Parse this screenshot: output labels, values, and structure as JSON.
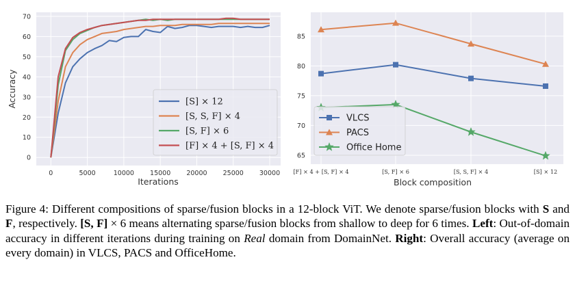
{
  "chart_data": [
    {
      "type": "line",
      "position": "left",
      "xlabel": "Iterations",
      "ylabel": "Accuracy",
      "xlim": [
        -2000,
        31500
      ],
      "ylim": [
        -4,
        72
      ],
      "xticks": [
        0,
        5000,
        10000,
        15000,
        20000,
        25000,
        30000
      ],
      "yticks": [
        0,
        10,
        20,
        30,
        40,
        50,
        60,
        70
      ],
      "legend_position": "lower-right",
      "grid": true,
      "series": [
        {
          "name": "[S] × 12",
          "color": "#4c72b0",
          "x": [
            0,
            1000,
            2000,
            3000,
            4000,
            5000,
            6000,
            7000,
            8000,
            9000,
            10000,
            11000,
            12000,
            13000,
            14000,
            15000,
            16000,
            17000,
            18000,
            19000,
            20000,
            21000,
            22000,
            23000,
            24000,
            25000,
            26000,
            27000,
            28000,
            29000,
            30000
          ],
          "y": [
            0,
            22,
            37,
            45,
            49,
            52,
            54,
            55.5,
            58,
            57.5,
            59.5,
            60,
            60,
            63.5,
            62.5,
            62,
            65,
            64,
            64.5,
            65.5,
            65.5,
            65,
            64.5,
            65,
            65,
            65,
            64.5,
            65,
            64.5,
            64.5,
            65.5
          ]
        },
        {
          "name": "[S, S, F] × 4",
          "color": "#dd8452",
          "x": [
            0,
            1000,
            2000,
            3000,
            4000,
            5000,
            6000,
            7000,
            8000,
            9000,
            10000,
            11000,
            12000,
            13000,
            14000,
            15000,
            16000,
            17000,
            18000,
            19000,
            20000,
            21000,
            22000,
            23000,
            24000,
            25000,
            26000,
            27000,
            28000,
            29000,
            30000
          ],
          "y": [
            0,
            28,
            45,
            52,
            56,
            58.5,
            60,
            61.5,
            62,
            62.5,
            63.5,
            64,
            64.5,
            65,
            65,
            65.5,
            65.5,
            65.5,
            66,
            66,
            66,
            66,
            66,
            66.5,
            66.5,
            66.5,
            66.5,
            66.5,
            66.5,
            66.5,
            66.5
          ]
        },
        {
          "name": "[S, F] × 6",
          "color": "#55a868",
          "x": [
            0,
            1000,
            2000,
            3000,
            4000,
            5000,
            6000,
            7000,
            8000,
            9000,
            10000,
            11000,
            12000,
            13000,
            14000,
            15000,
            16000,
            17000,
            18000,
            19000,
            20000,
            21000,
            22000,
            23000,
            24000,
            25000,
            26000,
            27000,
            28000,
            29000,
            30000
          ],
          "y": [
            0,
            36,
            53,
            58.5,
            61.5,
            63,
            64.5,
            65.5,
            66,
            66.5,
            67,
            67.5,
            68,
            68.5,
            68,
            68.5,
            68,
            68.5,
            68.5,
            68.5,
            68.5,
            68.5,
            68.5,
            68.5,
            68.5,
            68.5,
            68.5,
            68.5,
            68.5,
            68.5,
            68.5
          ]
        },
        {
          "name": "[F] × 4 + [S, F] × 4",
          "color": "#c44e52",
          "x": [
            0,
            1000,
            2000,
            3000,
            4000,
            5000,
            6000,
            7000,
            8000,
            9000,
            10000,
            11000,
            12000,
            13000,
            14000,
            15000,
            16000,
            17000,
            18000,
            19000,
            20000,
            21000,
            22000,
            23000,
            24000,
            25000,
            26000,
            27000,
            28000,
            29000,
            30000
          ],
          "y": [
            0,
            40,
            54,
            59.5,
            62,
            63.5,
            64.5,
            65.5,
            66,
            66.5,
            67,
            67.5,
            68,
            68,
            68.5,
            68.5,
            68.5,
            68.5,
            68.5,
            68.5,
            68.5,
            68.5,
            68.5,
            68.5,
            69,
            69,
            68.5,
            68.5,
            68.5,
            68.5,
            68.5
          ]
        }
      ],
      "legend": [
        "[S] × 12",
        "[S, S, F] × 4",
        "[S, F] × 6",
        "[F] × 4 + [S, F] × 4"
      ]
    },
    {
      "type": "line",
      "position": "right",
      "xlabel": "Block composition",
      "ylabel": "",
      "ylim": [
        63.5,
        89
      ],
      "yticks": [
        65,
        70,
        75,
        80,
        85
      ],
      "categories": [
        "[F] × 4 + [S, F] × 4",
        "[S, F] × 6",
        "[S, S, F] × 4",
        "[S] × 12"
      ],
      "legend_position": "lower-left",
      "grid": true,
      "series": [
        {
          "name": "VLCS",
          "color": "#4c72b0",
          "marker": "square",
          "values": [
            78.7,
            80.2,
            77.9,
            76.6
          ]
        },
        {
          "name": "PACS",
          "color": "#dd8452",
          "marker": "triangle",
          "values": [
            86.1,
            87.2,
            83.7,
            80.3
          ]
        },
        {
          "name": "Office Home",
          "color": "#55a868",
          "marker": "star",
          "values": [
            73.0,
            73.5,
            68.9,
            64.9
          ]
        }
      ]
    }
  ],
  "caption": {
    "fig_label": "Figure 4:",
    "t1": " Different compositions of sparse/fusion blocks in a 12-block ViT. We denote sparse/fusion blocks with ",
    "s": "S",
    "t2": " and ",
    "f": "F",
    "t3": ", respectively. ",
    "sf": "[S, F]",
    "t4": " × 6 means alternating sparse/fusion blocks from shallow to deep for 6 times. ",
    "left_label": "Left",
    "t5": ": Out-of-domain accuracy in different iterations during training on ",
    "real": "Real",
    "t6": " domain from DomainNet. ",
    "right_label": "Right",
    "t7": ": Overall accuracy (average on every domain) in VLCS, PACS and OfficeHome."
  }
}
